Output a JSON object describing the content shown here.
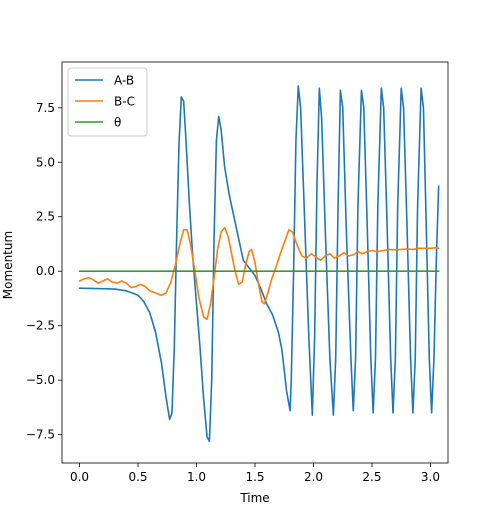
{
  "chart_data": {
    "type": "line",
    "title": "",
    "xlabel": "Time",
    "ylabel": "Momentum",
    "xlim": [
      -0.15,
      3.15
    ],
    "ylim": [
      -8.8,
      9.6
    ],
    "grid": false,
    "legend_position": "top-left",
    "x_ticks": [
      0.0,
      0.5,
      1.0,
      1.5,
      2.0,
      2.5,
      3.0
    ],
    "x_tick_labels": [
      "0.0",
      "0.5",
      "1.0",
      "1.5",
      "2.0",
      "2.5",
      "3.0"
    ],
    "y_ticks": [
      -7.5,
      -5.0,
      -2.5,
      0.0,
      2.5,
      5.0,
      7.5
    ],
    "y_tick_labels": [
      "−7.5",
      "−5.0",
      "−2.5",
      "0.0",
      "2.5",
      "5.0",
      "7.5"
    ],
    "series": [
      {
        "name": "A-B",
        "color": "#1f77b4",
        "points": [
          [
            0.0,
            -0.78
          ],
          [
            0.1,
            -0.79
          ],
          [
            0.2,
            -0.8
          ],
          [
            0.3,
            -0.82
          ],
          [
            0.4,
            -0.9
          ],
          [
            0.5,
            -1.1
          ],
          [
            0.55,
            -1.4
          ],
          [
            0.6,
            -1.9
          ],
          [
            0.65,
            -2.8
          ],
          [
            0.7,
            -4.2
          ],
          [
            0.74,
            -5.8
          ],
          [
            0.77,
            -6.8
          ],
          [
            0.79,
            -6.5
          ],
          [
            0.81,
            -3.5
          ],
          [
            0.83,
            1.5
          ],
          [
            0.85,
            5.8
          ],
          [
            0.87,
            8.0
          ],
          [
            0.89,
            7.8
          ],
          [
            0.91,
            6.0
          ],
          [
            0.94,
            3.0
          ],
          [
            0.97,
            0.5
          ],
          [
            1.0,
            -1.5
          ],
          [
            1.03,
            -3.5
          ],
          [
            1.06,
            -5.8
          ],
          [
            1.09,
            -7.6
          ],
          [
            1.11,
            -7.8
          ],
          [
            1.13,
            -5.0
          ],
          [
            1.15,
            1.5
          ],
          [
            1.17,
            6.0
          ],
          [
            1.19,
            7.1
          ],
          [
            1.21,
            6.5
          ],
          [
            1.24,
            4.8
          ],
          [
            1.28,
            3.5
          ],
          [
            1.32,
            2.5
          ],
          [
            1.36,
            1.5
          ],
          [
            1.4,
            0.5
          ],
          [
            1.45,
            0.15
          ],
          [
            1.5,
            -0.2
          ],
          [
            1.55,
            -0.8
          ],
          [
            1.6,
            -1.5
          ],
          [
            1.65,
            -2.0
          ],
          [
            1.7,
            -2.8
          ],
          [
            1.73,
            -3.6
          ],
          [
            1.77,
            -5.5
          ],
          [
            1.8,
            -6.4
          ],
          [
            1.81,
            -5.0
          ],
          [
            1.83,
            0.0
          ],
          [
            1.85,
            6.0
          ],
          [
            1.87,
            8.5
          ],
          [
            1.89,
            7.5
          ],
          [
            1.92,
            3.0
          ],
          [
            1.96,
            -3.0
          ],
          [
            1.99,
            -6.6
          ],
          [
            2.01,
            -3.0
          ],
          [
            2.03,
            4.0
          ],
          [
            2.05,
            8.4
          ],
          [
            2.07,
            7.0
          ],
          [
            2.1,
            2.0
          ],
          [
            2.14,
            -4.0
          ],
          [
            2.17,
            -6.6
          ],
          [
            2.19,
            -4.0
          ],
          [
            2.21,
            3.0
          ],
          [
            2.23,
            8.3
          ],
          [
            2.25,
            7.5
          ],
          [
            2.28,
            2.0
          ],
          [
            2.32,
            -4.0
          ],
          [
            2.34,
            -6.4
          ],
          [
            2.36,
            -4.0
          ],
          [
            2.38,
            3.0
          ],
          [
            2.41,
            8.3
          ],
          [
            2.43,
            7.5
          ],
          [
            2.46,
            2.0
          ],
          [
            2.49,
            -4.0
          ],
          [
            2.51,
            -6.5
          ],
          [
            2.53,
            -4.0
          ],
          [
            2.55,
            3.0
          ],
          [
            2.58,
            8.4
          ],
          [
            2.6,
            7.5
          ],
          [
            2.63,
            2.0
          ],
          [
            2.66,
            -4.0
          ],
          [
            2.68,
            -6.5
          ],
          [
            2.7,
            -4.0
          ],
          [
            2.72,
            3.0
          ],
          [
            2.75,
            8.4
          ],
          [
            2.77,
            7.5
          ],
          [
            2.8,
            2.0
          ],
          [
            2.83,
            -4.0
          ],
          [
            2.85,
            -6.5
          ],
          [
            2.87,
            -4.0
          ],
          [
            2.89,
            3.0
          ],
          [
            2.92,
            8.4
          ],
          [
            2.94,
            7.5
          ],
          [
            2.96,
            3.0
          ],
          [
            2.99,
            -4.0
          ],
          [
            3.01,
            -6.5
          ],
          [
            3.03,
            -4.0
          ],
          [
            3.05,
            0.5
          ],
          [
            3.07,
            3.9
          ]
        ]
      },
      {
        "name": "B-C",
        "color": "#ff7f0e",
        "points": [
          [
            0.0,
            -0.45
          ],
          [
            0.04,
            -0.35
          ],
          [
            0.08,
            -0.3
          ],
          [
            0.12,
            -0.4
          ],
          [
            0.16,
            -0.55
          ],
          [
            0.2,
            -0.45
          ],
          [
            0.24,
            -0.35
          ],
          [
            0.28,
            -0.5
          ],
          [
            0.32,
            -0.55
          ],
          [
            0.36,
            -0.45
          ],
          [
            0.4,
            -0.55
          ],
          [
            0.44,
            -0.75
          ],
          [
            0.48,
            -0.7
          ],
          [
            0.52,
            -0.6
          ],
          [
            0.56,
            -0.7
          ],
          [
            0.6,
            -0.9
          ],
          [
            0.65,
            -1.0
          ],
          [
            0.7,
            -1.1
          ],
          [
            0.74,
            -1.0
          ],
          [
            0.78,
            -0.5
          ],
          [
            0.82,
            0.3
          ],
          [
            0.86,
            1.3
          ],
          [
            0.89,
            1.9
          ],
          [
            0.92,
            1.9
          ],
          [
            0.95,
            1.2
          ],
          [
            0.98,
            0.2
          ],
          [
            1.02,
            -1.2
          ],
          [
            1.06,
            -2.1
          ],
          [
            1.09,
            -2.2
          ],
          [
            1.12,
            -1.5
          ],
          [
            1.15,
            -0.3
          ],
          [
            1.18,
            1.0
          ],
          [
            1.21,
            1.8
          ],
          [
            1.24,
            2.0
          ],
          [
            1.27,
            1.6
          ],
          [
            1.3,
            0.8
          ],
          [
            1.33,
            0.0
          ],
          [
            1.36,
            -0.6
          ],
          [
            1.39,
            -0.5
          ],
          [
            1.42,
            0.3
          ],
          [
            1.45,
            0.9
          ],
          [
            1.47,
            1.0
          ],
          [
            1.5,
            0.4
          ],
          [
            1.53,
            -0.6
          ],
          [
            1.56,
            -1.4
          ],
          [
            1.58,
            -1.5
          ],
          [
            1.61,
            -1.0
          ],
          [
            1.64,
            -0.4
          ],
          [
            1.68,
            0.2
          ],
          [
            1.71,
            0.7
          ],
          [
            1.75,
            1.3
          ],
          [
            1.79,
            1.9
          ],
          [
            1.82,
            1.8
          ],
          [
            1.86,
            1.2
          ],
          [
            1.9,
            0.7
          ],
          [
            1.94,
            0.6
          ],
          [
            1.98,
            0.8
          ],
          [
            2.02,
            0.65
          ],
          [
            2.06,
            0.5
          ],
          [
            2.1,
            0.7
          ],
          [
            2.14,
            0.8
          ],
          [
            2.18,
            0.6
          ],
          [
            2.22,
            0.7
          ],
          [
            2.26,
            0.85
          ],
          [
            2.3,
            0.7
          ],
          [
            2.34,
            0.75
          ],
          [
            2.38,
            0.9
          ],
          [
            2.42,
            0.8
          ],
          [
            2.46,
            0.9
          ],
          [
            2.5,
            0.95
          ],
          [
            2.55,
            0.9
          ],
          [
            2.6,
            0.95
          ],
          [
            2.65,
            1.0
          ],
          [
            2.7,
            0.98
          ],
          [
            2.75,
            1.0
          ],
          [
            2.8,
            1.02
          ],
          [
            2.85,
            1.0
          ],
          [
            2.9,
            1.05
          ],
          [
            2.95,
            1.05
          ],
          [
            3.0,
            1.05
          ],
          [
            3.05,
            1.08
          ],
          [
            3.07,
            1.05
          ]
        ]
      },
      {
        "name": "θ",
        "color": "#2ca02c",
        "points": [
          [
            0.0,
            0.0
          ],
          [
            3.07,
            0.0
          ]
        ]
      }
    ]
  }
}
